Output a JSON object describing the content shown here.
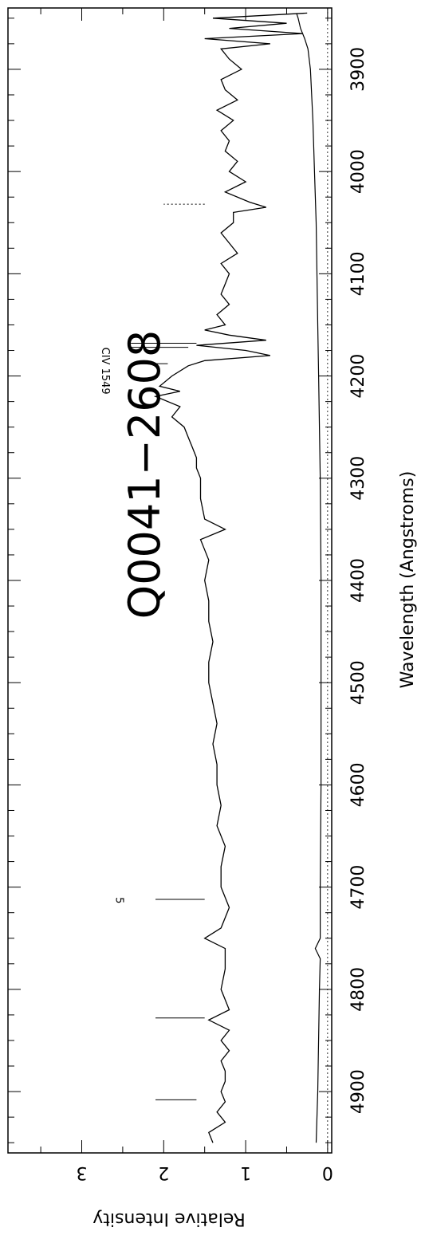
{
  "chart_data": {
    "type": "line",
    "title": "Q0041−2608",
    "xlabel": "Wavelength (Angstroms)",
    "ylabel": "Relative Intensity",
    "xlim": [
      3840,
      4960
    ],
    "ylim": [
      -0.05,
      3.9
    ],
    "x_ticks": [
      3900,
      4000,
      4100,
      4200,
      4300,
      4400,
      4500,
      4600,
      4700,
      4800,
      4900
    ],
    "y_ticks": [
      0,
      1,
      2,
      3
    ],
    "grid": false,
    "legend": "none",
    "zero_line": "dotted",
    "series": [
      {
        "role": "flux",
        "x": [
          3845,
          3850,
          3855,
          3860,
          3865,
          3870,
          3875,
          3880,
          3890,
          3900,
          3910,
          3920,
          3930,
          3940,
          3950,
          3960,
          3970,
          3980,
          3990,
          4000,
          4010,
          4020,
          4030,
          4035,
          4040,
          4050,
          4060,
          4070,
          4080,
          4090,
          4100,
          4110,
          4120,
          4130,
          4140,
          4150,
          4155,
          4160,
          4165,
          4170,
          4175,
          4180,
          4185,
          4190,
          4200,
          4210,
          4215,
          4220,
          4230,
          4240,
          4250,
          4260,
          4270,
          4280,
          4290,
          4300,
          4320,
          4340,
          4350,
          4360,
          4380,
          4400,
          4420,
          4440,
          4460,
          4480,
          4500,
          4520,
          4540,
          4560,
          4580,
          4600,
          4620,
          4640,
          4660,
          4680,
          4700,
          4720,
          4740,
          4750,
          4760,
          4780,
          4800,
          4820,
          4830,
          4840,
          4850,
          4860,
          4870,
          4880,
          4890,
          4900,
          4910,
          4920,
          4930,
          4940,
          4950
        ],
        "y": [
          0.25,
          1.4,
          0.5,
          1.2,
          0.3,
          1.5,
          0.7,
          1.3,
          1.2,
          1.05,
          1.3,
          1.25,
          1.1,
          1.35,
          1.15,
          1.3,
          1.2,
          1.25,
          1.1,
          1.2,
          1.0,
          1.25,
          0.95,
          0.75,
          1.15,
          1.15,
          1.3,
          1.2,
          1.1,
          1.3,
          1.2,
          1.25,
          1.3,
          1.2,
          1.35,
          1.25,
          1.5,
          1.2,
          0.75,
          1.6,
          1.0,
          0.7,
          1.5,
          1.7,
          1.9,
          2.05,
          1.8,
          2.1,
          1.8,
          1.9,
          1.75,
          1.7,
          1.65,
          1.6,
          1.6,
          1.55,
          1.55,
          1.5,
          1.25,
          1.55,
          1.45,
          1.5,
          1.45,
          1.45,
          1.4,
          1.45,
          1.45,
          1.4,
          1.35,
          1.4,
          1.35,
          1.35,
          1.3,
          1.35,
          1.25,
          1.3,
          1.3,
          1.2,
          1.3,
          1.5,
          1.25,
          1.25,
          1.3,
          1.2,
          1.45,
          1.2,
          1.3,
          1.2,
          1.3,
          1.25,
          1.25,
          1.3,
          1.25,
          1.35,
          1.25,
          1.45,
          1.4
        ]
      },
      {
        "role": "error",
        "x": [
          3845,
          3850,
          3860,
          3870,
          3880,
          3900,
          3950,
          4000,
          4050,
          4100,
          4150,
          4200,
          4250,
          4300,
          4400,
          4500,
          4600,
          4700,
          4750,
          4760,
          4770,
          4800,
          4900,
          4950
        ],
        "y": [
          0.38,
          0.36,
          0.33,
          0.28,
          0.24,
          0.21,
          0.18,
          0.16,
          0.14,
          0.13,
          0.12,
          0.11,
          0.1,
          0.09,
          0.08,
          0.08,
          0.08,
          0.09,
          0.09,
          0.15,
          0.09,
          0.1,
          0.12,
          0.14
        ]
      }
    ],
    "markers": [
      {
        "x": 4032,
        "y_from": 1.5,
        "y_to": 2.0,
        "style": "dotted"
      },
      {
        "x": 4168,
        "y_from": 1.6,
        "y_to": 2.4,
        "style": "solid"
      },
      {
        "x": 4172,
        "y_from": 1.7,
        "y_to": 2.4,
        "style": "solid"
      },
      {
        "x": 4188,
        "y_from": 1.95,
        "y_to": 2.4,
        "style": "solid"
      },
      {
        "x": 4712,
        "y_from": 1.5,
        "y_to": 2.1,
        "style": "solid"
      },
      {
        "x": 4828,
        "y_from": 1.5,
        "y_to": 2.1,
        "style": "solid"
      },
      {
        "x": 4908,
        "y_from": 1.6,
        "y_to": 2.1,
        "style": "solid"
      }
    ],
    "annotations": [
      {
        "text": "CIV 1549",
        "x": 4195,
        "y": 2.75
      },
      {
        "text": "5",
        "x": 4713,
        "y": 2.58
      }
    ]
  }
}
